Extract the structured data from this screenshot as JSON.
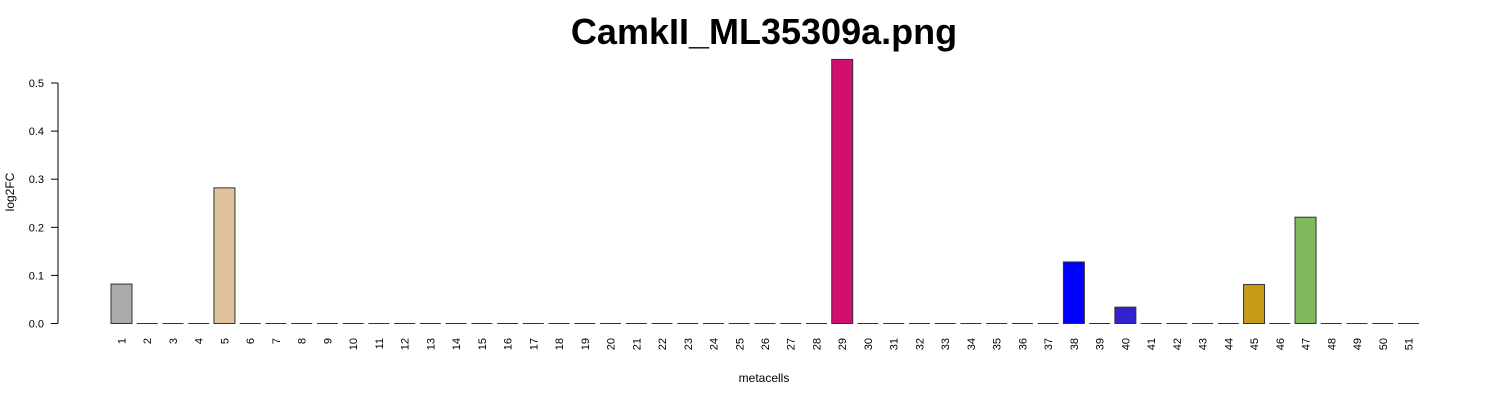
{
  "chart_data": {
    "type": "bar",
    "title": "CamkII_ML35309a.png",
    "xlabel": "metacells",
    "ylabel": "log2FC",
    "ylim": [
      0,
      0.55
    ],
    "yticks": [
      "0.0",
      "0.1",
      "0.2",
      "0.3",
      "0.4",
      "0.5"
    ],
    "grid": false,
    "categories": [
      "1",
      "2",
      "3",
      "4",
      "5",
      "6",
      "7",
      "8",
      "9",
      "10",
      "11",
      "12",
      "13",
      "14",
      "15",
      "16",
      "17",
      "18",
      "19",
      "20",
      "21",
      "22",
      "23",
      "24",
      "25",
      "26",
      "27",
      "28",
      "29",
      "30",
      "31",
      "32",
      "33",
      "34",
      "35",
      "36",
      "37",
      "38",
      "39",
      "40",
      "41",
      "42",
      "43",
      "44",
      "45",
      "46",
      "47",
      "48",
      "49",
      "50",
      "51"
    ],
    "values": [
      0.082,
      0,
      0,
      0,
      0.282,
      0,
      0,
      0,
      0,
      0,
      0,
      0,
      0,
      0,
      0,
      0,
      0,
      0,
      0,
      0,
      0,
      0,
      0,
      0,
      0,
      0,
      0,
      0,
      0.549,
      0,
      0,
      0,
      0,
      0,
      0,
      0,
      0,
      0.128,
      0,
      0.034,
      0,
      0,
      0,
      0,
      0.081,
      0,
      0.221,
      0,
      0,
      0,
      0
    ],
    "colors": [
      "#aaaaaa",
      "#cccccc",
      "#cccccc",
      "#cccccc",
      "#dfc19e",
      "#cccccc",
      "#cccccc",
      "#cccccc",
      "#cccccc",
      "#cccccc",
      "#cccccc",
      "#cccccc",
      "#cccccc",
      "#cccccc",
      "#cccccc",
      "#cccccc",
      "#cccccc",
      "#cccccc",
      "#cccccc",
      "#cccccc",
      "#cccccc",
      "#cccccc",
      "#cccccc",
      "#cccccc",
      "#cccccc",
      "#cccccc",
      "#cccccc",
      "#cccccc",
      "#d10f6e",
      "#cccccc",
      "#cccccc",
      "#cccccc",
      "#cccccc",
      "#cccccc",
      "#cccccc",
      "#cccccc",
      "#cccccc",
      "#0000ff",
      "#cccccc",
      "#3322cc",
      "#cccccc",
      "#cccccc",
      "#cccccc",
      "#cccccc",
      "#c79a18",
      "#cccccc",
      "#80b95e",
      "#cccccc",
      "#cccccc",
      "#cccccc",
      "#cccccc"
    ]
  }
}
